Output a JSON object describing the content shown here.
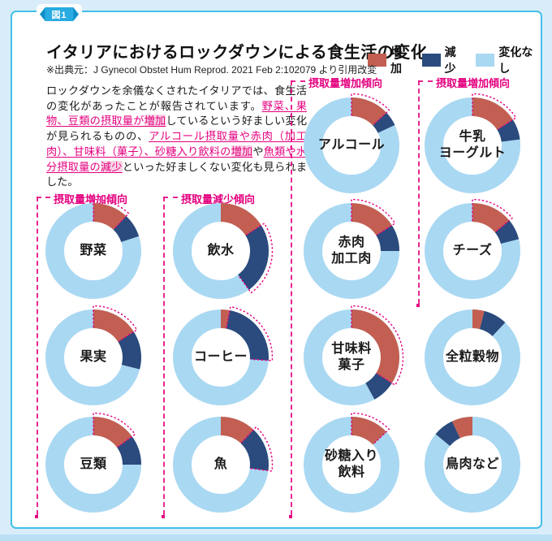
{
  "figure_tag": "図1",
  "title": "イタリアにおけるロックダウンによる食生活の変化",
  "source": "※出典元：J Gynecol Obstet Hum Reprod. 2021 Feb 2:102079 より引用改変",
  "legend": [
    {
      "key": "increase",
      "label": "増加",
      "color": "#c25f52"
    },
    {
      "key": "decrease",
      "label": "減少",
      "color": "#2b4a7d"
    },
    {
      "key": "no_change",
      "label": "変化なし",
      "color": "#a9d8f2"
    }
  ],
  "intro_runs": [
    {
      "style": "plain",
      "text": "ロックダウンを余儀なくされたイタリアでは、食生活の変化があったことが報告されています。"
    },
    {
      "style": "link",
      "text": "野菜、果物、豆類の摂取量が"
    },
    {
      "style": "link-hl",
      "text": "増加"
    },
    {
      "style": "plain",
      "text": "しているという好ましい変化が見られるものの、"
    },
    {
      "style": "link",
      "text": "アルコール摂取量や赤肉（加工肉）、甘味料（菓子）、砂糖入り飲料の"
    },
    {
      "style": "link-hl",
      "text": "増加"
    },
    {
      "style": "plain",
      "text": "や"
    },
    {
      "style": "link",
      "text": "魚類や水分摂取量の"
    },
    {
      "style": "link-hl",
      "text": "減少"
    },
    {
      "style": "plain",
      "text": "といった好ましくない変化も見られました。"
    }
  ],
  "groups": [
    {
      "id": "g1",
      "label": "摂取量増加傾向"
    },
    {
      "id": "g2",
      "label": "摂取量減少傾向"
    },
    {
      "id": "g3",
      "label": "摂取量増加傾向"
    },
    {
      "id": "g4",
      "label": "摂取量増加傾向"
    }
  ],
  "accent_colors": {
    "magenta": "#e4007f",
    "card_border": "#43bfe8",
    "badge_cyan": "#29abe2",
    "page_background": "#d8edf9",
    "highlight_pink": "#f9d3e4"
  },
  "chart_data": {
    "type": "donut",
    "unit": "percent",
    "legend_position": "top-right",
    "colors": {
      "increase": "#c25f52",
      "decrease": "#2b4a7d",
      "no_change": "#a9d8f2"
    },
    "charts": [
      {
        "id": "vegetables",
        "label": "野菜",
        "increase": 12,
        "decrease": 8,
        "no_change": 80,
        "outline": "increase",
        "arrangement": "start",
        "group": "g1",
        "col": 0,
        "row": 1
      },
      {
        "id": "fruits",
        "label": "果実",
        "increase": 16,
        "decrease": 13,
        "no_change": 71,
        "outline": "increase",
        "arrangement": "start",
        "group": "g1",
        "col": 0,
        "row": 2
      },
      {
        "id": "legumes",
        "label": "豆類",
        "increase": 15,
        "decrease": 10,
        "no_change": 75,
        "outline": "increase",
        "arrangement": "start",
        "group": "g1",
        "col": 0,
        "row": 3
      },
      {
        "id": "water",
        "label": "飲水",
        "increase": 16,
        "decrease": 24,
        "no_change": 60,
        "outline": "decrease",
        "arrangement": "start",
        "group": "g2",
        "col": 1,
        "row": 1
      },
      {
        "id": "coffee",
        "label": "コーヒー",
        "increase": 3,
        "decrease": 23,
        "no_change": 74,
        "outline": "decrease",
        "arrangement": "start",
        "group": "g2",
        "col": 1,
        "row": 2
      },
      {
        "id": "fish",
        "label": "魚",
        "increase": 12,
        "decrease": 15,
        "no_change": 73,
        "outline": "decrease",
        "arrangement": "start",
        "group": "g2",
        "col": 1,
        "row": 3
      },
      {
        "id": "alcohol",
        "label": "アルコール",
        "increase": 13,
        "decrease": 5,
        "no_change": 82,
        "outline": "increase",
        "arrangement": "start",
        "group": "g3",
        "col": 2,
        "row": 0
      },
      {
        "id": "red-meat",
        "label": "赤肉\n加工肉",
        "increase": 16,
        "decrease": 9,
        "no_change": 75,
        "outline": "increase",
        "arrangement": "start",
        "group": "g3",
        "col": 2,
        "row": 1
      },
      {
        "id": "sweets",
        "label": "甘味料\n菓子",
        "increase": 34,
        "decrease": 8,
        "no_change": 58,
        "outline": "increase",
        "arrangement": "start",
        "group": "g3",
        "col": 2,
        "row": 2
      },
      {
        "id": "sugary-drinks",
        "label": "砂糖入り\n飲料",
        "increase": 13,
        "decrease": 0,
        "no_change": 87,
        "outline": "increase",
        "arrangement": "start",
        "group": "g3",
        "col": 2,
        "row": 3
      },
      {
        "id": "milk-yogurt",
        "label": "牛乳\nヨーグルト",
        "increase": 16,
        "decrease": 7,
        "no_change": 77,
        "outline": "increase",
        "arrangement": "start",
        "group": "g4",
        "col": 3,
        "row": 0
      },
      {
        "id": "cheese",
        "label": "チーズ",
        "increase": 14,
        "decrease": 7,
        "no_change": 79,
        "outline": "increase",
        "arrangement": "start",
        "group": "g4",
        "col": 3,
        "row": 1
      },
      {
        "id": "whole-grains",
        "label": "全粒穀物",
        "increase": 4,
        "decrease": 8,
        "no_change": 88,
        "outline": null,
        "arrangement": "start",
        "group": null,
        "col": 3,
        "row": 2
      },
      {
        "id": "poultry",
        "label": "鳥肉など",
        "increase": 7,
        "decrease": 7,
        "no_change": 86,
        "outline": null,
        "arrangement": "end",
        "group": null,
        "col": 3,
        "row": 3
      }
    ]
  }
}
